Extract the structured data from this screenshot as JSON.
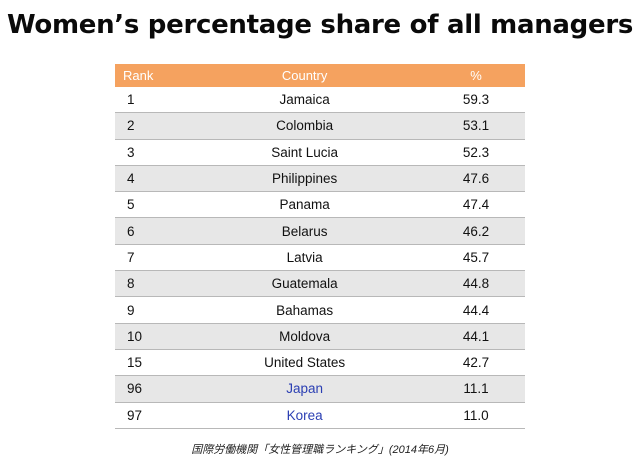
{
  "chart_data": {
    "type": "table",
    "title": "Women’s percentage share of all managers",
    "columns": [
      "Rank",
      "Country",
      "%"
    ],
    "rows": [
      {
        "rank": "1",
        "country": "Jamaica",
        "value": 59.3,
        "value_text": "59.3"
      },
      {
        "rank": "2",
        "country": "Colombia",
        "value": 53.1,
        "value_text": "53.1"
      },
      {
        "rank": "3",
        "country": "Saint Lucia",
        "value": 52.3,
        "value_text": "52.3"
      },
      {
        "rank": "4",
        "country": "Philippines",
        "value": 47.6,
        "value_text": "47.6"
      },
      {
        "rank": "5",
        "country": "Panama",
        "value": 47.4,
        "value_text": "47.4"
      },
      {
        "rank": "6",
        "country": "Belarus",
        "value": 46.2,
        "value_text": "46.2"
      },
      {
        "rank": "7",
        "country": "Latvia",
        "value": 45.7,
        "value_text": "45.7"
      },
      {
        "rank": "8",
        "country": "Guatemala",
        "value": 44.8,
        "value_text": "44.8"
      },
      {
        "rank": "9",
        "country": "Bahamas",
        "value": 44.4,
        "value_text": "44.4"
      },
      {
        "rank": "10",
        "country": "Moldova",
        "value": 44.1,
        "value_text": "44.1"
      },
      {
        "rank": "15",
        "country": "United States",
        "value": 42.7,
        "value_text": "42.7"
      },
      {
        "rank": "96",
        "country": "Japan",
        "value": 11.1,
        "value_text": "11.1",
        "highlight": true
      },
      {
        "rank": "97",
        "country": "Korea",
        "value": 11.0,
        "value_text": "11.0",
        "highlight": true
      }
    ],
    "source": "国際労働機関「女性管理職ランキング」(2014年6月)"
  },
  "colors": {
    "header_bg": "#f5a25f",
    "header_text": "#ffffff",
    "stripe_bg": "#e7e7e7",
    "highlight_text": "#2b3fb3"
  }
}
